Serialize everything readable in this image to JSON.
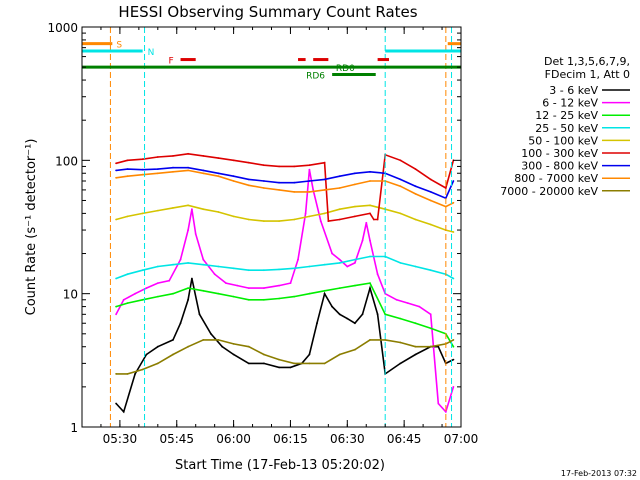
{
  "chart_data": {
    "type": "line",
    "title": "HESSI Observing Summary Count Rates",
    "xlabel": "Start Time (17-Feb-13 05:20:02)",
    "ylabel": "Count Rate (s⁻¹ detector⁻¹)",
    "footer": "17-Feb-2013 07:32",
    "x_axis": {
      "type": "time",
      "range_min": [
        20,
        120
      ],
      "ticks_min": [
        30,
        45,
        60,
        75,
        90,
        105,
        120
      ],
      "tick_labels": [
        "05:30",
        "05:45",
        "06:00",
        "06:15",
        "06:30",
        "06:45",
        "07:00"
      ]
    },
    "y_axis": {
      "scale": "log",
      "range": [
        1,
        1000
      ],
      "ticks": [
        1,
        10,
        100,
        1000
      ],
      "tick_labels": [
        "1",
        "10",
        "100",
        "1000"
      ]
    },
    "legend": {
      "placement": "right",
      "header": [
        "Det 1,3,5,6,7,9,",
        "FDecim 1, Att 0"
      ],
      "entries": [
        {
          "label": "3 - 6 keV",
          "color": "#000000"
        },
        {
          "label": "6 - 12 keV",
          "color": "#ff00ff"
        },
        {
          "label": "12 - 25 keV",
          "color": "#00ee00"
        },
        {
          "label": "25 - 50 keV",
          "color": "#00e5e5"
        },
        {
          "label": "50 - 100 keV",
          "color": "#d4c400"
        },
        {
          "label": "100 - 300 keV",
          "color": "#dd0000"
        },
        {
          "label": "300 - 800 keV",
          "color": "#0000ee"
        },
        {
          "label": "800 - 7000 keV",
          "color": "#ff8800"
        },
        {
          "label": "7000 - 20000 keV",
          "color": "#8b7d00"
        }
      ]
    },
    "flag_bars": [
      {
        "label": "S",
        "color": "#ff8800",
        "segments": [
          [
            20,
            28
          ],
          [
            116.5,
            120
          ]
        ],
        "y": 750
      },
      {
        "label": "N",
        "color": "#00e5e5",
        "segments": [
          [
            20,
            36
          ],
          [
            100,
            120
          ]
        ],
        "y": 660
      },
      {
        "label": "F",
        "color": "#dd0000",
        "segments": [
          [
            46,
            50
          ],
          [
            77,
            79
          ],
          [
            81,
            85
          ],
          [
            98,
            101
          ]
        ],
        "y": 570
      },
      {
        "label": "RD0",
        "color": "#008000",
        "segments": [
          [
            20,
            120
          ]
        ],
        "y": 500
      },
      {
        "label": "RD6",
        "color": "#008000",
        "segments": [
          [
            86,
            97.5
          ]
        ],
        "y": 440
      }
    ],
    "vertical_markers": [
      {
        "time_min": 27.5,
        "color": "#ff8800"
      },
      {
        "time_min": 36.5,
        "color": "#00e5e5"
      },
      {
        "time_min": 100.0,
        "color": "#00e5e5"
      },
      {
        "time_min": 116.0,
        "color": "#ff8800"
      },
      {
        "time_min": 117.5,
        "color": "#00e5e5"
      }
    ],
    "series": [
      {
        "name": "3 - 6 keV",
        "color": "#000000",
        "x": [
          29,
          31,
          34,
          37,
          40,
          44,
          46,
          48,
          49,
          51,
          54,
          57,
          60,
          64,
          68,
          72,
          75,
          78,
          80,
          82,
          84,
          86,
          88,
          90,
          92,
          94,
          96,
          98,
          100,
          104,
          108,
          112,
          114,
          116,
          118
        ],
        "y": [
          1.5,
          1.3,
          2.5,
          3.5,
          4,
          4.5,
          6,
          9,
          13,
          7,
          5,
          4,
          3.5,
          3,
          3,
          2.8,
          2.8,
          3,
          3.5,
          6,
          10,
          8,
          7,
          6.5,
          6,
          7,
          11,
          7,
          2.5,
          3,
          3.5,
          4,
          4,
          3,
          3.2
        ]
      },
      {
        "name": "6 - 12 keV",
        "color": "#ff00ff",
        "x": [
          29,
          31,
          34,
          37,
          40,
          43,
          46,
          48,
          49,
          50,
          52,
          55,
          58,
          61,
          64,
          68,
          72,
          75,
          77,
          79,
          80,
          81,
          83,
          86,
          88,
          90,
          92,
          94,
          95,
          96,
          98,
          100,
          103,
          106,
          109,
          112,
          114,
          116,
          118
        ],
        "y": [
          7,
          9,
          10,
          11,
          12,
          12.5,
          18,
          30,
          43,
          28,
          18,
          14,
          12,
          11.5,
          11,
          11,
          11.5,
          12,
          18,
          40,
          85,
          60,
          35,
          20,
          18,
          16,
          17,
          25,
          34,
          25,
          14,
          10,
          9,
          8.5,
          8,
          7,
          1.5,
          1.3,
          2
        ]
      },
      {
        "name": "12 - 25 keV",
        "color": "#00ee00",
        "x": [
          29,
          32,
          36,
          40,
          44,
          48,
          52,
          56,
          60,
          64,
          68,
          72,
          76,
          80,
          84,
          88,
          92,
          96,
          100,
          104,
          108,
          112,
          116,
          118
        ],
        "y": [
          8,
          8.5,
          9,
          9.5,
          10,
          11,
          10.5,
          10,
          9.5,
          9,
          9,
          9.2,
          9.5,
          10,
          10.5,
          11,
          11.5,
          12,
          7,
          6.5,
          6,
          5.5,
          5,
          4
        ]
      },
      {
        "name": "25 - 50 keV",
        "color": "#00e5e5",
        "x": [
          29,
          32,
          36,
          40,
          44,
          48,
          52,
          56,
          60,
          64,
          68,
          72,
          76,
          80,
          84,
          88,
          92,
          96,
          100,
          104,
          108,
          112,
          116,
          118
        ],
        "y": [
          13,
          14,
          15,
          16,
          16.5,
          17,
          16.5,
          16,
          15.5,
          15,
          15,
          15.2,
          15.5,
          16,
          16.5,
          17,
          18,
          19,
          19,
          17,
          16,
          15,
          14,
          13
        ]
      },
      {
        "name": "50 - 100 keV",
        "color": "#d4c400",
        "x": [
          29,
          32,
          36,
          40,
          44,
          48,
          52,
          56,
          60,
          64,
          68,
          72,
          76,
          80,
          84,
          88,
          92,
          96,
          100,
          104,
          108,
          112,
          116,
          118
        ],
        "y": [
          36,
          38,
          40,
          42,
          44,
          46,
          43,
          41,
          38,
          36,
          35,
          35,
          36,
          38,
          40,
          43,
          45,
          46,
          43,
          40,
          36,
          33,
          30,
          29
        ]
      },
      {
        "name": "100 - 300 keV",
        "color": "#dd0000",
        "x": [
          29,
          32,
          36,
          40,
          44,
          48,
          52,
          56,
          60,
          64,
          68,
          72,
          76,
          80,
          84,
          85,
          88,
          92,
          96,
          97,
          98,
          100,
          104,
          108,
          112,
          116,
          118
        ],
        "y": [
          95,
          100,
          102,
          106,
          108,
          112,
          108,
          104,
          100,
          96,
          92,
          90,
          90,
          92,
          96,
          35,
          36,
          38,
          40,
          36,
          36,
          110,
          100,
          86,
          72,
          62,
          100
        ]
      },
      {
        "name": "300 - 800 keV",
        "color": "#0000ee",
        "x": [
          29,
          32,
          36,
          40,
          44,
          48,
          52,
          56,
          60,
          64,
          68,
          72,
          76,
          80,
          84,
          88,
          92,
          96,
          100,
          104,
          108,
          112,
          116,
          118
        ],
        "y": [
          84,
          86,
          85,
          86,
          88,
          88,
          84,
          80,
          76,
          72,
          70,
          68,
          68,
          70,
          72,
          76,
          80,
          82,
          80,
          72,
          64,
          58,
          52,
          70
        ]
      },
      {
        "name": "800 - 7000 keV",
        "color": "#ff8800",
        "x": [
          29,
          32,
          36,
          40,
          44,
          48,
          52,
          56,
          60,
          64,
          68,
          72,
          76,
          80,
          84,
          88,
          92,
          96,
          100,
          104,
          108,
          112,
          116,
          118
        ],
        "y": [
          74,
          76,
          78,
          80,
          82,
          84,
          80,
          76,
          70,
          65,
          62,
          60,
          58,
          58,
          60,
          62,
          66,
          70,
          70,
          64,
          56,
          50,
          45,
          48
        ]
      },
      {
        "name": "7000 - 20000 keV",
        "color": "#8b7d00",
        "x": [
          29,
          32,
          36,
          40,
          44,
          48,
          52,
          56,
          60,
          64,
          68,
          72,
          76,
          80,
          84,
          88,
          92,
          96,
          100,
          104,
          108,
          112,
          116,
          118
        ],
        "y": [
          2.5,
          2.5,
          2.7,
          3,
          3.5,
          4,
          4.5,
          4.5,
          4.2,
          4,
          3.5,
          3.2,
          3,
          3,
          3,
          3.5,
          3.8,
          4.5,
          4.5,
          4.3,
          4,
          4,
          4.2,
          4.5
        ]
      }
    ]
  }
}
